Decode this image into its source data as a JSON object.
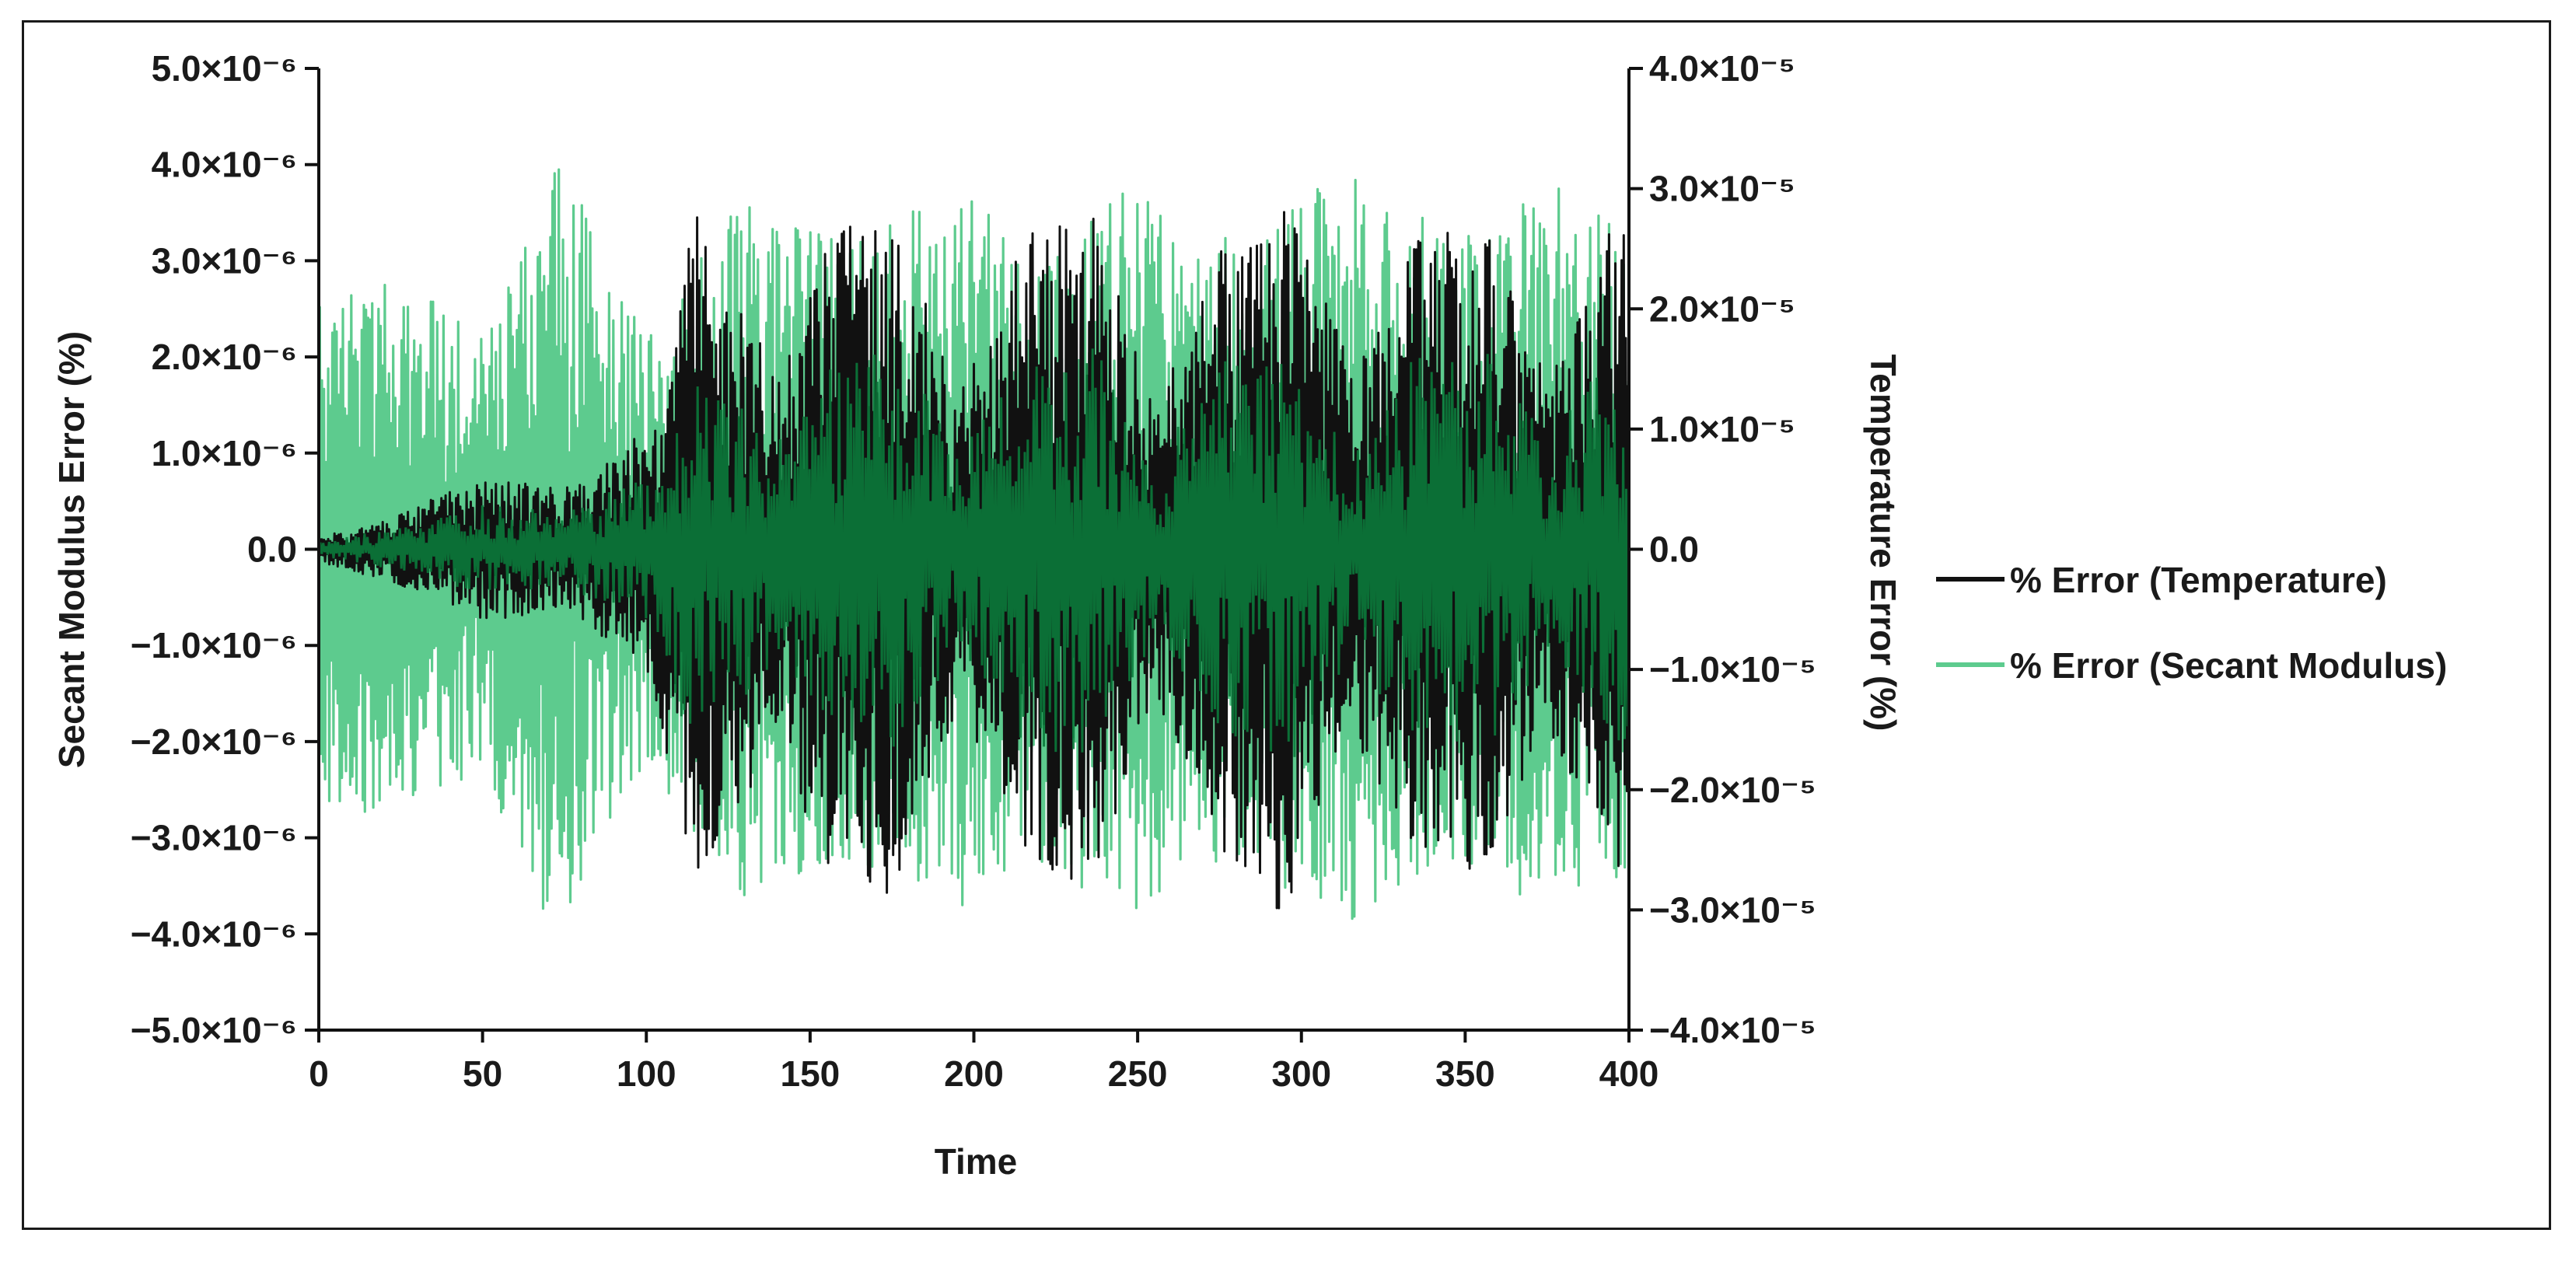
{
  "chart_data": {
    "type": "line",
    "xlabel": "Time",
    "ylabel": "Secant Modulus Error (%)",
    "y2label": "Temperature Error (%)",
    "xlim": [
      0,
      400
    ],
    "ylim": [
      -5e-06,
      5e-06
    ],
    "y2lim": [
      -4e-05,
      4e-05
    ],
    "grid": false,
    "legend_position": "right",
    "x_ticks": [
      "0",
      "50",
      "100",
      "150",
      "200",
      "250",
      "300",
      "350",
      "400"
    ],
    "y_ticks": [
      {
        "value": 5e-06,
        "label": "5.0×10⁻⁶"
      },
      {
        "value": 4e-06,
        "label": "4.0×10⁻⁶"
      },
      {
        "value": 3e-06,
        "label": "3.0×10⁻⁶"
      },
      {
        "value": 2e-06,
        "label": "2.0×10⁻⁶"
      },
      {
        "value": 1e-06,
        "label": "1.0×10⁻⁶"
      },
      {
        "value": 0.0,
        "label": "0.0"
      },
      {
        "value": -1e-06,
        "label": "−1.0×10⁻⁶"
      },
      {
        "value": -2e-06,
        "label": "−2.0×10⁻⁶"
      },
      {
        "value": -3e-06,
        "label": "−3.0×10⁻⁶"
      },
      {
        "value": -4e-06,
        "label": "−4.0×10⁻⁶"
      },
      {
        "value": -5e-06,
        "label": "−5.0×10⁻⁶"
      }
    ],
    "y2_ticks": [
      {
        "value": 4e-05,
        "label": "4.0×10⁻⁵"
      },
      {
        "value": 3e-05,
        "label": "3.0×10⁻⁵"
      },
      {
        "value": 2e-05,
        "label": "2.0×10⁻⁵"
      },
      {
        "value": 1e-05,
        "label": "1.0×10⁻⁵"
      },
      {
        "value": 0.0,
        "label": "0.0"
      },
      {
        "value": -1e-05,
        "label": "−1.0×10⁻⁵"
      },
      {
        "value": -2e-05,
        "label": "−2.0×10⁻⁵"
      },
      {
        "value": -3e-05,
        "label": "−3.0×10⁻⁵"
      },
      {
        "value": -4e-05,
        "label": "−4.0×10⁻⁵"
      }
    ],
    "series": [
      {
        "name": "% Error (Temperature)",
        "axis": "right",
        "color": "#111111",
        "x_step": 5,
        "envelope_note_points": [
          [
            0,
            1e-06
          ],
          [
            25,
            3e-06
          ],
          [
            50,
            6e-06
          ],
          [
            75,
            5e-06
          ],
          [
            100,
            1e-05
          ],
          [
            115,
            2.8e-05
          ],
          [
            140,
            1.6e-05
          ],
          [
            155,
            2.7e-05
          ],
          [
            175,
            2.9e-05
          ],
          [
            195,
            1.3e-05
          ],
          [
            215,
            2.6e-05
          ],
          [
            235,
            2.9e-05
          ],
          [
            255,
            1.2e-05
          ],
          [
            275,
            2.5e-05
          ],
          [
            295,
            3.1e-05
          ],
          [
            315,
            1.5e-05
          ],
          [
            335,
            2.6e-05
          ],
          [
            355,
            2.8e-05
          ],
          [
            375,
            1.5e-05
          ],
          [
            395,
            2.7e-05
          ],
          [
            400,
            2.6e-05
          ]
        ]
      },
      {
        "name": "% Error (Secant Modulus)",
        "axis": "left",
        "color": "#5DCB8E",
        "x_step": 5,
        "envelope_note_points": [
          [
            0,
            2.7e-06
          ],
          [
            25,
            2.8e-06
          ],
          [
            50,
            2.3e-06
          ],
          [
            73,
            4.1e-06
          ],
          [
            100,
            2.2e-06
          ],
          [
            130,
            3.7e-06
          ],
          [
            160,
            3.2e-06
          ],
          [
            195,
            3.8e-06
          ],
          [
            215,
            3.2e-06
          ],
          [
            248,
            3.8e-06
          ],
          [
            280,
            3.2e-06
          ],
          [
            315,
            4e-06
          ],
          [
            345,
            3.3e-06
          ],
          [
            378,
            3.8e-06
          ],
          [
            400,
            3.4e-06
          ]
        ]
      }
    ]
  }
}
